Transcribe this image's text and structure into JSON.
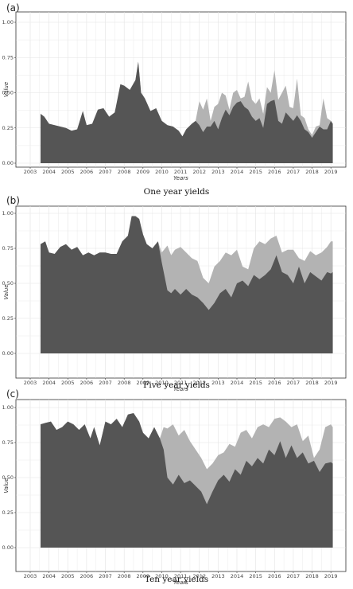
{
  "chart_data": [
    {
      "panel": "(a)",
      "caption": "One year yields",
      "type": "area",
      "xlabel": "Years",
      "ylabel": "Value",
      "ylim": [
        0,
        1
      ],
      "yticks": [
        "0.00",
        "0.25",
        "0.50",
        "0.75",
        "1.00"
      ],
      "xlim": [
        2003,
        2019.5
      ],
      "xticks": [
        "2003",
        "2004",
        "2005",
        "2006",
        "2007",
        "2008",
        "2009",
        "2010",
        "2011",
        "2012",
        "2013",
        "2014",
        "2015",
        "2016",
        "2017",
        "2018",
        "2019"
      ],
      "grid": true,
      "colors": {
        "back": "#b3b3b3",
        "front": "#555555"
      },
      "x": [
        2003.55,
        2003.75,
        2004.0,
        2004.3,
        2004.6,
        2004.9,
        2005.2,
        2005.5,
        2005.8,
        2006.0,
        2006.3,
        2006.6,
        2006.9,
        2007.2,
        2007.5,
        2007.8,
        2008.0,
        2008.3,
        2008.6,
        2008.75,
        2008.9,
        2009.1,
        2009.4,
        2009.7,
        2010.0,
        2010.3,
        2010.6,
        2010.9,
        2011.1,
        2011.3,
        2011.6,
        2011.8,
        2012.0,
        2012.2,
        2012.4,
        2012.6,
        2012.8,
        2013.0,
        2013.2,
        2013.4,
        2013.6,
        2013.8,
        2014.0,
        2014.2,
        2014.4,
        2014.6,
        2014.8,
        2015.0,
        2015.2,
        2015.4,
        2015.6,
        2015.8,
        2016.0,
        2016.2,
        2016.4,
        2016.6,
        2016.8,
        2017.0,
        2017.2,
        2017.4,
        2017.6,
        2017.8,
        2018.0,
        2018.2,
        2018.4,
        2018.6,
        2018.8,
        2019.0,
        2019.1
      ],
      "series": [
        {
          "values": [
            0.35,
            0.33,
            0.28,
            0.27,
            0.26,
            0.25,
            0.23,
            0.24,
            0.37,
            0.27,
            0.28,
            0.38,
            0.39,
            0.33,
            0.36,
            0.56,
            0.55,
            0.52,
            0.59,
            0.72,
            0.5,
            0.46,
            0.37,
            0.39,
            0.3,
            0.27,
            0.26,
            0.23,
            0.19,
            0.24,
            0.28,
            0.3,
            0.44,
            0.38,
            0.46,
            0.3,
            0.4,
            0.42,
            0.5,
            0.48,
            0.38,
            0.5,
            0.52,
            0.46,
            0.47,
            0.58,
            0.45,
            0.42,
            0.46,
            0.35,
            0.54,
            0.5,
            0.66,
            0.45,
            0.5,
            0.55,
            0.4,
            0.39,
            0.6,
            0.34,
            0.32,
            0.24,
            0.2,
            0.26,
            0.27,
            0.46,
            0.32,
            0.3,
            0.28
          ]
        },
        {
          "values": [
            0.35,
            0.33,
            0.28,
            0.27,
            0.26,
            0.25,
            0.23,
            0.24,
            0.37,
            0.27,
            0.28,
            0.38,
            0.39,
            0.33,
            0.36,
            0.56,
            0.55,
            0.52,
            0.59,
            0.72,
            0.5,
            0.46,
            0.37,
            0.39,
            0.3,
            0.27,
            0.26,
            0.23,
            0.19,
            0.24,
            0.28,
            0.3,
            0.27,
            0.22,
            0.26,
            0.26,
            0.3,
            0.24,
            0.32,
            0.38,
            0.34,
            0.4,
            0.43,
            0.44,
            0.4,
            0.38,
            0.33,
            0.3,
            0.32,
            0.25,
            0.42,
            0.44,
            0.45,
            0.3,
            0.28,
            0.36,
            0.33,
            0.3,
            0.34,
            0.3,
            0.24,
            0.22,
            0.18,
            0.22,
            0.26,
            0.24,
            0.24,
            0.3,
            0.28
          ]
        }
      ]
    },
    {
      "panel": "(b)",
      "caption": "Five year yields",
      "type": "area",
      "xlabel": "Years",
      "ylabel": "Value",
      "ylim": [
        0,
        1
      ],
      "yticks": [
        "0.00",
        "0.25",
        "0.50",
        "0.75",
        "1.00"
      ],
      "xlim": [
        2003,
        2019.5
      ],
      "xticks": [
        "2003",
        "2004",
        "2005",
        "2006",
        "2007",
        "2008",
        "2009",
        "2010",
        "2011",
        "2012",
        "2013",
        "2014",
        "2015",
        "2016",
        "2017",
        "2018",
        "2019"
      ],
      "grid": true,
      "colors": {
        "back": "#b3b3b3",
        "front": "#555555"
      },
      "x": [
        2003.55,
        2003.8,
        2004.0,
        2004.3,
        2004.6,
        2004.9,
        2005.2,
        2005.5,
        2005.8,
        2006.1,
        2006.4,
        2006.7,
        2007.0,
        2007.3,
        2007.6,
        2007.9,
        2008.2,
        2008.4,
        2008.6,
        2008.8,
        2009.0,
        2009.2,
        2009.5,
        2009.8,
        2010.0,
        2010.3,
        2010.5,
        2010.7,
        2011.0,
        2011.3,
        2011.6,
        2011.9,
        2012.2,
        2012.5,
        2012.8,
        2013.1,
        2013.4,
        2013.7,
        2014.0,
        2014.3,
        2014.6,
        2014.9,
        2015.2,
        2015.5,
        2015.8,
        2016.1,
        2016.4,
        2016.7,
        2017.0,
        2017.3,
        2017.6,
        2017.9,
        2018.2,
        2018.5,
        2018.8,
        2019.0,
        2019.1
      ],
      "series": [
        {
          "values": [
            0.78,
            0.8,
            0.72,
            0.71,
            0.76,
            0.78,
            0.74,
            0.76,
            0.7,
            0.72,
            0.7,
            0.72,
            0.72,
            0.71,
            0.71,
            0.8,
            0.84,
            0.98,
            0.98,
            0.96,
            0.85,
            0.78,
            0.75,
            0.8,
            0.72,
            0.77,
            0.7,
            0.74,
            0.76,
            0.72,
            0.68,
            0.66,
            0.54,
            0.5,
            0.62,
            0.66,
            0.72,
            0.7,
            0.74,
            0.62,
            0.6,
            0.75,
            0.8,
            0.78,
            0.82,
            0.84,
            0.72,
            0.74,
            0.74,
            0.68,
            0.66,
            0.73,
            0.7,
            0.72,
            0.76,
            0.8,
            0.8
          ]
        },
        {
          "values": [
            0.78,
            0.8,
            0.72,
            0.71,
            0.76,
            0.78,
            0.74,
            0.76,
            0.7,
            0.72,
            0.7,
            0.72,
            0.72,
            0.71,
            0.71,
            0.8,
            0.84,
            0.98,
            0.98,
            0.96,
            0.85,
            0.78,
            0.75,
            0.8,
            0.65,
            0.45,
            0.43,
            0.46,
            0.42,
            0.46,
            0.42,
            0.4,
            0.36,
            0.31,
            0.36,
            0.43,
            0.46,
            0.4,
            0.5,
            0.52,
            0.48,
            0.56,
            0.53,
            0.56,
            0.6,
            0.7,
            0.58,
            0.56,
            0.5,
            0.62,
            0.5,
            0.58,
            0.55,
            0.52,
            0.58,
            0.57,
            0.58
          ]
        }
      ]
    },
    {
      "panel": "(c)",
      "caption": "Ten year yields",
      "type": "area",
      "xlabel": "Years",
      "ylabel": "Value",
      "ylim": [
        0,
        1
      ],
      "yticks": [
        "0.00",
        "0.25",
        "0.50",
        "0.75",
        "1.00"
      ],
      "xlim": [
        2003,
        2019.5
      ],
      "xticks": [
        "2003",
        "2004",
        "2005",
        "2006",
        "2007",
        "2008",
        "2009",
        "2010",
        "2011",
        "2012",
        "2013",
        "2014",
        "2015",
        "2016",
        "2017",
        "2018",
        "2019"
      ],
      "grid": true,
      "colors": {
        "back": "#b3b3b3",
        "front": "#555555"
      },
      "x": [
        2003.55,
        2003.8,
        2004.1,
        2004.4,
        2004.7,
        2005.0,
        2005.3,
        2005.6,
        2005.9,
        2006.2,
        2006.4,
        2006.7,
        2007.0,
        2007.3,
        2007.6,
        2007.9,
        2008.2,
        2008.5,
        2008.8,
        2009.0,
        2009.3,
        2009.6,
        2009.9,
        2010.1,
        2010.3,
        2010.6,
        2010.9,
        2011.2,
        2011.5,
        2011.8,
        2012.1,
        2012.4,
        2012.7,
        2013.0,
        2013.3,
        2013.6,
        2013.9,
        2014.2,
        2014.5,
        2014.8,
        2015.1,
        2015.4,
        2015.7,
        2016.0,
        2016.3,
        2016.6,
        2016.9,
        2017.2,
        2017.5,
        2017.8,
        2018.1,
        2018.4,
        2018.7,
        2019.0,
        2019.1
      ],
      "series": [
        {
          "values": [
            0.88,
            0.89,
            0.9,
            0.84,
            0.86,
            0.9,
            0.88,
            0.84,
            0.88,
            0.78,
            0.86,
            0.73,
            0.9,
            0.88,
            0.92,
            0.86,
            0.95,
            0.96,
            0.9,
            0.82,
            0.78,
            0.86,
            0.78,
            0.86,
            0.85,
            0.88,
            0.8,
            0.84,
            0.76,
            0.7,
            0.64,
            0.56,
            0.6,
            0.66,
            0.68,
            0.74,
            0.72,
            0.82,
            0.84,
            0.78,
            0.86,
            0.88,
            0.86,
            0.92,
            0.93,
            0.9,
            0.86,
            0.88,
            0.76,
            0.8,
            0.64,
            0.7,
            0.86,
            0.88,
            0.86
          ]
        },
        {
          "values": [
            0.88,
            0.89,
            0.9,
            0.84,
            0.86,
            0.9,
            0.88,
            0.84,
            0.88,
            0.78,
            0.86,
            0.73,
            0.9,
            0.88,
            0.92,
            0.86,
            0.95,
            0.96,
            0.9,
            0.82,
            0.78,
            0.86,
            0.78,
            0.7,
            0.5,
            0.45,
            0.52,
            0.46,
            0.48,
            0.44,
            0.4,
            0.31,
            0.4,
            0.48,
            0.52,
            0.47,
            0.56,
            0.52,
            0.62,
            0.58,
            0.64,
            0.6,
            0.7,
            0.66,
            0.76,
            0.64,
            0.73,
            0.64,
            0.68,
            0.6,
            0.62,
            0.54,
            0.6,
            0.61,
            0.6
          ]
        }
      ]
    }
  ]
}
